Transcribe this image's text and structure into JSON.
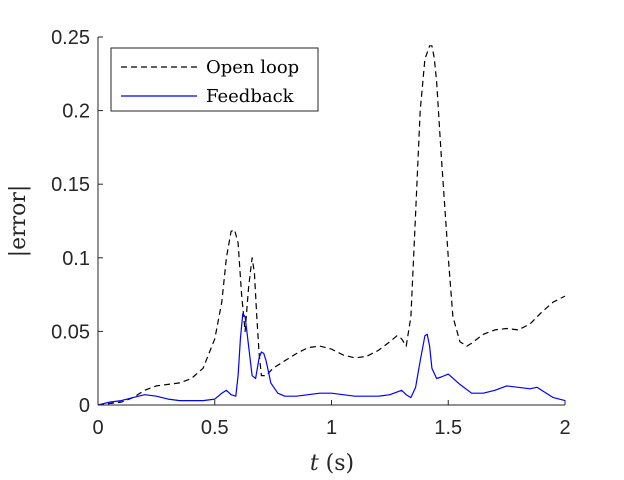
{
  "chart_data": {
    "type": "line",
    "xlabel_italic": "t",
    "xlabel_rest": " (s)",
    "ylabel": "|error|",
    "xlim": [
      0,
      2
    ],
    "ylim": [
      0,
      0.25
    ],
    "xticks": [
      0,
      0.5,
      1,
      1.5,
      2
    ],
    "xtick_labels": [
      "0",
      "0.5",
      "1",
      "1.5",
      "2"
    ],
    "yticks": [
      0,
      0.05,
      0.1,
      0.15,
      0.2,
      0.25
    ],
    "ytick_labels": [
      "0",
      "0.05",
      "0.1",
      "0.15",
      "0.2",
      "0.25"
    ],
    "grid": false,
    "legend_position": "top-left",
    "series": [
      {
        "name": "Open loop",
        "color": "#000000",
        "style": "dashed",
        "x": [
          0,
          0.05,
          0.1,
          0.15,
          0.2,
          0.25,
          0.3,
          0.35,
          0.4,
          0.45,
          0.5,
          0.53,
          0.55,
          0.57,
          0.585,
          0.6,
          0.615,
          0.63,
          0.645,
          0.66,
          0.67,
          0.68,
          0.69,
          0.7,
          0.72,
          0.75,
          0.8,
          0.85,
          0.9,
          0.95,
          1.0,
          1.05,
          1.1,
          1.15,
          1.2,
          1.25,
          1.28,
          1.3,
          1.32,
          1.34,
          1.36,
          1.38,
          1.4,
          1.42,
          1.43,
          1.44,
          1.45,
          1.47,
          1.5,
          1.52,
          1.55,
          1.58,
          1.6,
          1.65,
          1.7,
          1.75,
          1.8,
          1.85,
          1.9,
          1.95,
          2.0
        ],
        "y": [
          0,
          0.001,
          0.002,
          0.005,
          0.01,
          0.013,
          0.014,
          0.015,
          0.018,
          0.025,
          0.045,
          0.07,
          0.1,
          0.118,
          0.119,
          0.11,
          0.075,
          0.05,
          0.08,
          0.1,
          0.09,
          0.06,
          0.035,
          0.02,
          0.02,
          0.025,
          0.03,
          0.035,
          0.039,
          0.04,
          0.038,
          0.034,
          0.032,
          0.033,
          0.037,
          0.043,
          0.047,
          0.045,
          0.04,
          0.06,
          0.13,
          0.2,
          0.235,
          0.244,
          0.244,
          0.236,
          0.22,
          0.17,
          0.1,
          0.06,
          0.043,
          0.04,
          0.042,
          0.048,
          0.051,
          0.052,
          0.051,
          0.055,
          0.063,
          0.07,
          0.074
        ]
      },
      {
        "name": "Feedback",
        "color": "#0000ff",
        "style": "solid",
        "x": [
          0,
          0.05,
          0.1,
          0.15,
          0.2,
          0.25,
          0.3,
          0.35,
          0.4,
          0.45,
          0.5,
          0.53,
          0.55,
          0.57,
          0.59,
          0.6,
          0.61,
          0.62,
          0.63,
          0.645,
          0.66,
          0.675,
          0.69,
          0.7,
          0.71,
          0.72,
          0.74,
          0.77,
          0.8,
          0.85,
          0.9,
          0.95,
          1.0,
          1.05,
          1.1,
          1.15,
          1.2,
          1.25,
          1.3,
          1.32,
          1.34,
          1.36,
          1.38,
          1.4,
          1.41,
          1.42,
          1.43,
          1.45,
          1.47,
          1.5,
          1.55,
          1.6,
          1.65,
          1.7,
          1.75,
          1.8,
          1.85,
          1.88,
          1.9,
          1.95,
          2.0
        ],
        "y": [
          0,
          0.002,
          0.003,
          0.005,
          0.007,
          0.006,
          0.004,
          0.003,
          0.003,
          0.003,
          0.004,
          0.008,
          0.01,
          0.007,
          0.006,
          0.02,
          0.045,
          0.062,
          0.06,
          0.04,
          0.02,
          0.018,
          0.032,
          0.036,
          0.035,
          0.03,
          0.015,
          0.008,
          0.006,
          0.006,
          0.007,
          0.008,
          0.008,
          0.007,
          0.006,
          0.006,
          0.006,
          0.007,
          0.01,
          0.007,
          0.005,
          0.012,
          0.03,
          0.047,
          0.048,
          0.04,
          0.025,
          0.018,
          0.019,
          0.021,
          0.014,
          0.008,
          0.008,
          0.01,
          0.013,
          0.012,
          0.011,
          0.012,
          0.01,
          0.005,
          0.003
        ]
      }
    ]
  }
}
